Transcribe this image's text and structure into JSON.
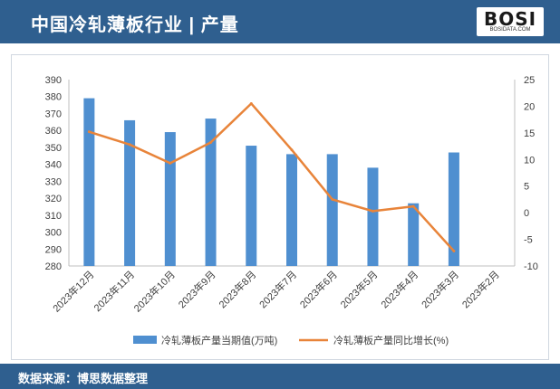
{
  "header": {
    "title": "中国冷轧薄板行业 | 产量",
    "logo_main": "BOSI",
    "logo_sub": "BOSIDATA.COM"
  },
  "footer": {
    "source": "数据来源：博思数据整理"
  },
  "colors": {
    "header_bg": "#2f5f8f",
    "bar": "#4f8fd0",
    "line": "#e8843a"
  },
  "chart_data": {
    "type": "bar+line",
    "title": "",
    "categories": [
      "2023年12月",
      "2023年11月",
      "2023年10月",
      "2023年9月",
      "2023年8月",
      "2023年7月",
      "2023年6月",
      "2023年5月",
      "2023年4月",
      "2023年3月",
      "2023年2月"
    ],
    "series": [
      {
        "name": "冷轧薄板产量当期值(万吨)",
        "type": "bar",
        "axis": "left",
        "values": [
          379,
          366,
          359,
          367,
          351,
          346,
          346,
          338,
          317,
          347,
          null
        ]
      },
      {
        "name": "冷轧薄板产量同比增长(%)",
        "type": "line",
        "axis": "right",
        "values": [
          15.2,
          12.8,
          9.3,
          13.2,
          20.5,
          11.8,
          2.5,
          0.3,
          1.2,
          -7.2,
          null
        ]
      }
    ],
    "left_axis": {
      "ylim": [
        280,
        390
      ],
      "ticks": [
        280,
        290,
        300,
        310,
        320,
        330,
        340,
        350,
        360,
        370,
        380,
        390
      ]
    },
    "right_axis": {
      "ylim": [
        -10,
        25
      ],
      "ticks": [
        -10,
        -5,
        0,
        5,
        10,
        15,
        20,
        25
      ]
    },
    "grid": false,
    "legend_position": "bottom"
  }
}
